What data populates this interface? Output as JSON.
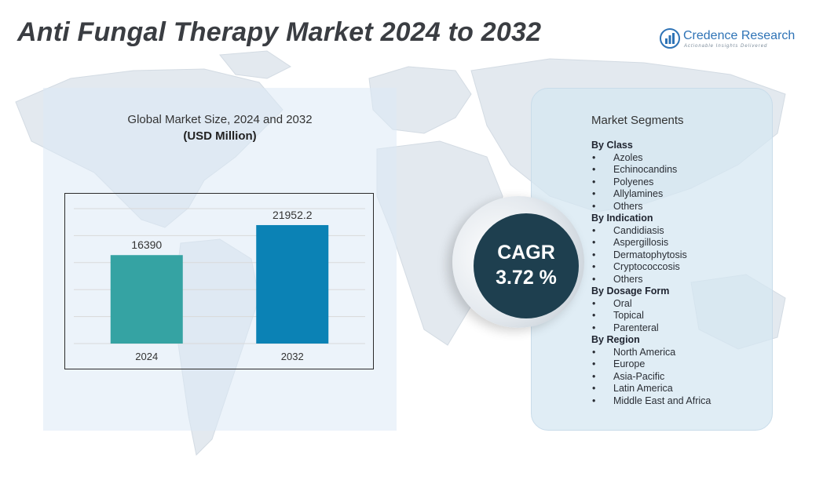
{
  "page": {
    "title": "Anti Fungal Therapy Market  2024 to 2032"
  },
  "logo": {
    "name": "Credence Research",
    "tagline": "Actionable Insights Delivered"
  },
  "chart_data": {
    "type": "bar",
    "title": "Global Market Size, 2024 and 2032",
    "subtitle": "(USD Million)",
    "categories": [
      "2024",
      "2032"
    ],
    "values": [
      16390,
      21952.2
    ],
    "value_labels": [
      "16390",
      "21952.2"
    ],
    "ylim": [
      0,
      25000
    ],
    "grid": true,
    "legend": "none",
    "colors": [
      "#35a3a3",
      "#0b82b5"
    ]
  },
  "cagr": {
    "label": "CAGR",
    "value": "3.72 %"
  },
  "segments": {
    "heading": "Market Segments",
    "groups": [
      {
        "title": "By Class",
        "items": [
          "Azoles",
          "Echinocandins",
          "Polyenes",
          "Allylamines",
          "Others"
        ]
      },
      {
        "title": "By Indication",
        "items": [
          "Candidiasis",
          "Aspergillosis",
          "Dermatophytosis",
          "Cryptococcosis",
          "Others"
        ]
      },
      {
        "title": "By Dosage Form",
        "items": [
          "Oral",
          "Topical",
          "Parenteral"
        ]
      },
      {
        "title": "By Region",
        "items": [
          "North America",
          "Europe",
          "Asia-Pacific",
          "Latin America",
          "Middle East and Africa"
        ]
      }
    ]
  },
  "colors": {
    "title": "#3a3d42",
    "brand": "#2e73b6",
    "cagr_bg": "#1e3f4f",
    "panel_bg": "#dceaf5"
  },
  "icons": {
    "logo": "bar-chart-logo-icon",
    "background": "world-map-icon"
  }
}
